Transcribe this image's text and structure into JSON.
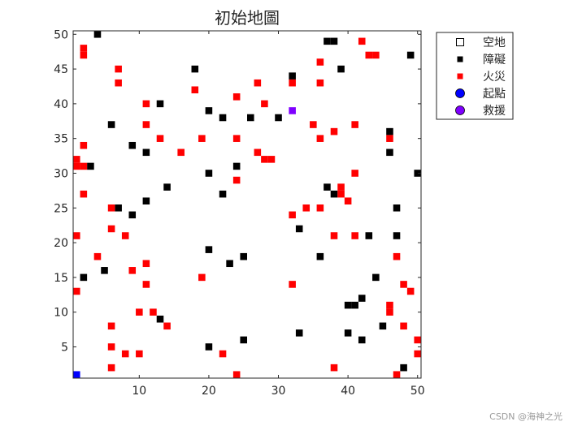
{
  "chart_data": {
    "type": "scatter",
    "title": "初始地圖",
    "xlabel": "",
    "ylabel": "",
    "xlim": [
      0.5,
      50.5
    ],
    "ylim": [
      0.5,
      50.5
    ],
    "xticks": [
      10,
      20,
      30,
      40,
      50
    ],
    "yticks": [
      5,
      10,
      15,
      20,
      25,
      30,
      35,
      40,
      45,
      50
    ],
    "grid": false,
    "legend_position": "top-right outside",
    "series": [
      {
        "name": "空地",
        "marker": "hollow-square",
        "color": "#000000",
        "points": []
      },
      {
        "name": "障礙",
        "marker": "square",
        "color": "#000000",
        "points": [
          [
            4,
            50
          ],
          [
            37,
            49
          ],
          [
            38,
            49
          ],
          [
            49,
            47
          ],
          [
            18,
            45
          ],
          [
            32,
            44
          ],
          [
            39,
            45
          ],
          [
            13,
            40
          ],
          [
            20,
            39
          ],
          [
            22,
            38
          ],
          [
            26,
            38
          ],
          [
            30,
            38
          ],
          [
            6,
            37
          ],
          [
            46,
            36
          ],
          [
            9,
            34
          ],
          [
            11,
            33
          ],
          [
            46,
            33
          ],
          [
            3,
            31
          ],
          [
            24,
            31
          ],
          [
            20,
            30
          ],
          [
            50,
            30
          ],
          [
            37,
            28
          ],
          [
            14,
            28
          ],
          [
            38,
            27
          ],
          [
            22,
            27
          ],
          [
            11,
            26
          ],
          [
            7,
            25
          ],
          [
            47,
            25
          ],
          [
            9,
            24
          ],
          [
            33,
            22
          ],
          [
            43,
            21
          ],
          [
            47,
            21
          ],
          [
            20,
            19
          ],
          [
            25,
            18
          ],
          [
            36,
            18
          ],
          [
            23,
            17
          ],
          [
            5,
            16
          ],
          [
            2,
            15
          ],
          [
            44,
            15
          ],
          [
            42,
            12
          ],
          [
            40,
            11
          ],
          [
            41,
            11
          ],
          [
            13,
            9
          ],
          [
            45,
            8
          ],
          [
            40,
            7
          ],
          [
            33,
            7
          ],
          [
            25,
            6
          ],
          [
            42,
            6
          ],
          [
            20,
            5
          ],
          [
            48,
            2
          ]
        ]
      },
      {
        "name": "火災",
        "marker": "square",
        "color": "#ff0000",
        "points": [
          [
            42,
            49
          ],
          [
            2,
            48
          ],
          [
            2,
            47
          ],
          [
            43,
            47
          ],
          [
            44,
            47
          ],
          [
            36,
            46
          ],
          [
            7,
            45
          ],
          [
            7,
            43
          ],
          [
            27,
            43
          ],
          [
            32,
            43
          ],
          [
            36,
            43
          ],
          [
            18,
            42
          ],
          [
            24,
            41
          ],
          [
            11,
            40
          ],
          [
            28,
            40
          ],
          [
            35,
            37
          ],
          [
            41,
            37
          ],
          [
            11,
            37
          ],
          [
            38,
            36
          ],
          [
            13,
            35
          ],
          [
            19,
            35
          ],
          [
            24,
            35
          ],
          [
            36,
            35
          ],
          [
            46,
            35
          ],
          [
            2,
            34
          ],
          [
            16,
            33
          ],
          [
            27,
            33
          ],
          [
            28,
            32
          ],
          [
            29,
            32
          ],
          [
            1,
            32
          ],
          [
            1,
            31
          ],
          [
            2,
            31
          ],
          [
            41,
            30
          ],
          [
            24,
            29
          ],
          [
            39,
            28
          ],
          [
            2,
            27
          ],
          [
            39,
            27
          ],
          [
            40,
            26
          ],
          [
            6,
            25
          ],
          [
            34,
            25
          ],
          [
            36,
            25
          ],
          [
            32,
            24
          ],
          [
            6,
            22
          ],
          [
            1,
            21
          ],
          [
            8,
            21
          ],
          [
            38,
            21
          ],
          [
            41,
            21
          ],
          [
            4,
            18
          ],
          [
            47,
            18
          ],
          [
            11,
            17
          ],
          [
            9,
            16
          ],
          [
            19,
            15
          ],
          [
            1,
            13
          ],
          [
            11,
            14
          ],
          [
            32,
            14
          ],
          [
            48,
            14
          ],
          [
            49,
            13
          ],
          [
            46,
            11
          ],
          [
            10,
            10
          ],
          [
            12,
            10
          ],
          [
            46,
            10
          ],
          [
            14,
            8
          ],
          [
            6,
            8
          ],
          [
            48,
            8
          ],
          [
            50,
            6
          ],
          [
            6,
            5
          ],
          [
            8,
            4
          ],
          [
            10,
            4
          ],
          [
            22,
            4
          ],
          [
            50,
            4
          ],
          [
            6,
            2
          ],
          [
            38,
            2
          ],
          [
            24,
            1
          ],
          [
            47,
            1
          ]
        ]
      },
      {
        "name": "起點",
        "marker": "circle",
        "color": "#0000ff",
        "points": [
          [
            1,
            1
          ]
        ]
      },
      {
        "name": "救援",
        "marker": "circle",
        "color": "#7f00ff",
        "points": [
          [
            32,
            39
          ]
        ]
      }
    ]
  },
  "watermark": "CSDN @海神之光"
}
